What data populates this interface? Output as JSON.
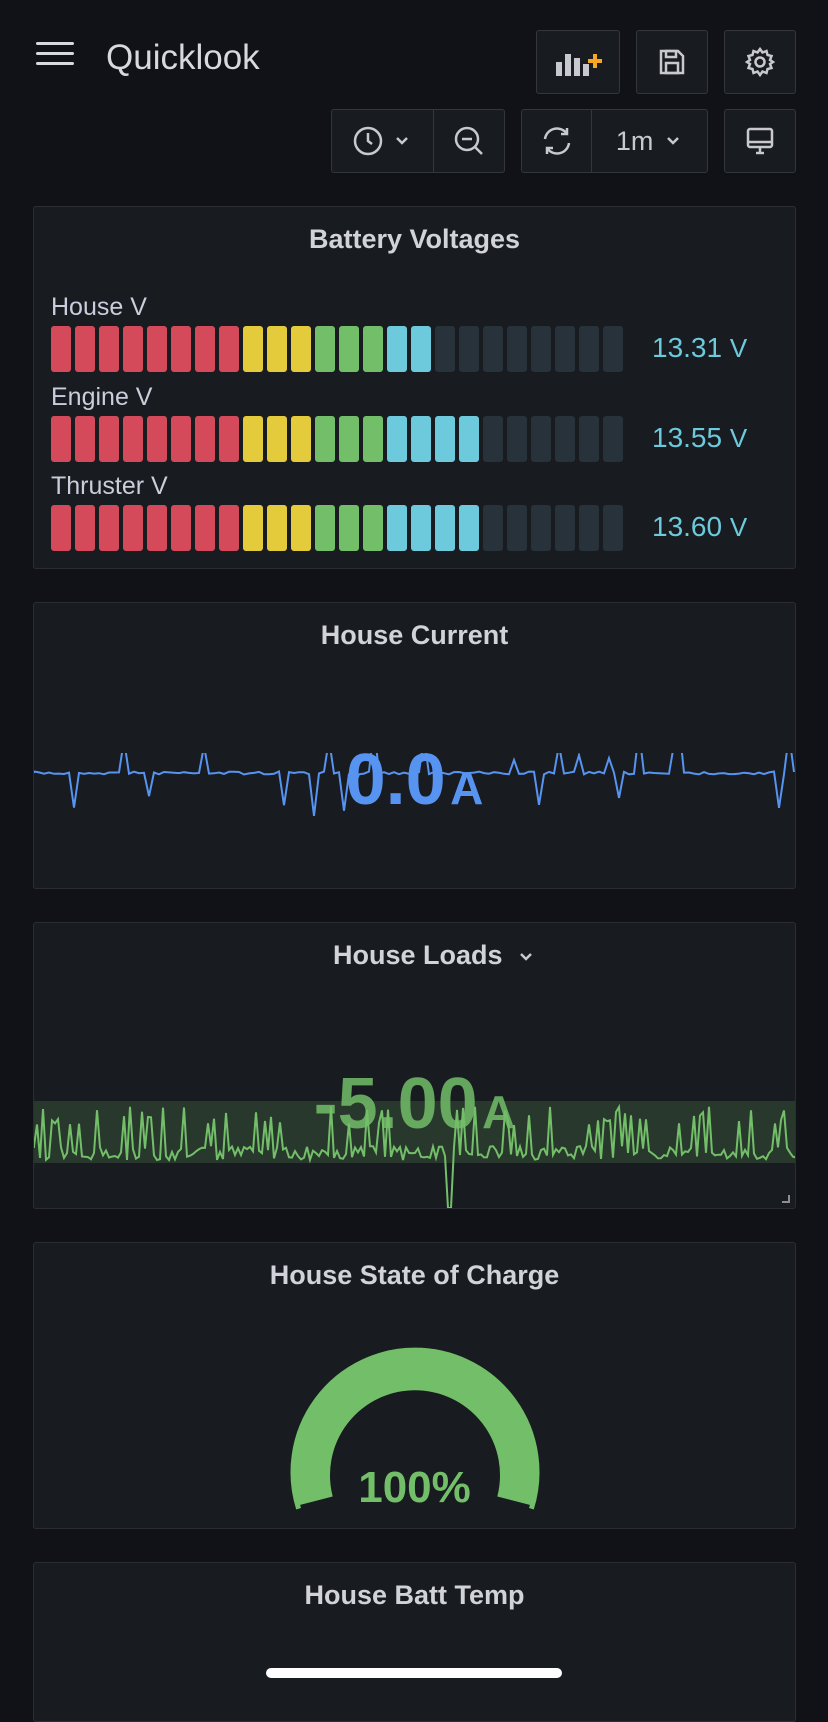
{
  "header": {
    "title": "Quicklook",
    "refresh_interval": "1m"
  },
  "colors": {
    "red": "#d44a5b",
    "yellow": "#e4cb3c",
    "green": "#73bf69",
    "blue": "#6ccadc",
    "empty": "#27323a",
    "current_line": "#5794f2",
    "loads_line": "#73bf69"
  },
  "battery_voltages": {
    "title": "Battery Voltages",
    "segments_total": 24,
    "bars": [
      {
        "label": "House V",
        "value": "13.31",
        "unit": "V",
        "lit": 16
      },
      {
        "label": "Engine V",
        "value": "13.55",
        "unit": "V",
        "lit": 18
      },
      {
        "label": "Thruster V",
        "value": "13.60",
        "unit": "V",
        "lit": 18
      }
    ]
  },
  "house_current": {
    "title": "House Current",
    "value": "0.0",
    "unit": "A"
  },
  "house_loads": {
    "title": "House Loads",
    "value": "-5.00",
    "unit": "A"
  },
  "state_of_charge": {
    "title": "House State of Charge",
    "value": "100%",
    "percent": 100
  },
  "batt_temp": {
    "title": "House Batt Temp"
  }
}
